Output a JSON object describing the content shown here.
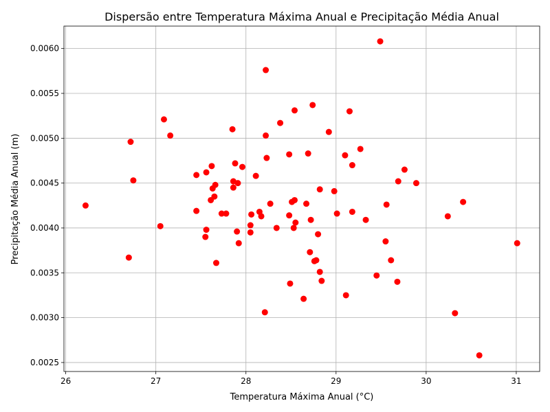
{
  "chart_data": {
    "type": "scatter",
    "title": "Dispersão entre Temperatura Máxima Anual e Precipitação Média Anual",
    "xlabel": "Temperatura Máxima Anual (°C)",
    "ylabel": "Precipitação Média Anual (m)",
    "xlim": [
      25.98,
      31.26
    ],
    "ylim": [
      0.0024,
      0.00625
    ],
    "xticks": [
      "26",
      "27",
      "28",
      "29",
      "30",
      "31"
    ],
    "xtick_values": [
      26,
      27,
      28,
      29,
      30,
      31
    ],
    "yticks": [
      "0.0025",
      "0.0030",
      "0.0035",
      "0.0040",
      "0.0045",
      "0.0050",
      "0.0055",
      "0.0060"
    ],
    "ytick_values": [
      0.0025,
      0.003,
      0.0035,
      0.004,
      0.0045,
      0.005,
      0.0055,
      0.006
    ],
    "grid": true,
    "marker_color": "#ff0000",
    "points": [
      [
        26.22,
        0.00425
      ],
      [
        26.7,
        0.00367
      ],
      [
        26.72,
        0.00496
      ],
      [
        26.75,
        0.00453
      ],
      [
        27.05,
        0.00402
      ],
      [
        27.09,
        0.00521
      ],
      [
        27.16,
        0.00503
      ],
      [
        27.45,
        0.00419
      ],
      [
        27.45,
        0.00459
      ],
      [
        27.55,
        0.0039
      ],
      [
        27.56,
        0.00398
      ],
      [
        27.56,
        0.00462
      ],
      [
        27.61,
        0.00431
      ],
      [
        27.62,
        0.00469
      ],
      [
        27.63,
        0.00444
      ],
      [
        27.65,
        0.00435
      ],
      [
        27.66,
        0.00448
      ],
      [
        27.67,
        0.00361
      ],
      [
        27.73,
        0.00416
      ],
      [
        27.78,
        0.00416
      ],
      [
        27.85,
        0.0051
      ],
      [
        27.86,
        0.00452
      ],
      [
        27.86,
        0.00445
      ],
      [
        27.88,
        0.00472
      ],
      [
        27.9,
        0.00396
      ],
      [
        27.91,
        0.0045
      ],
      [
        27.92,
        0.00383
      ],
      [
        27.96,
        0.00468
      ],
      [
        28.05,
        0.00403
      ],
      [
        28.05,
        0.00395
      ],
      [
        28.06,
        0.00415
      ],
      [
        28.11,
        0.00458
      ],
      [
        28.15,
        0.00418
      ],
      [
        28.17,
        0.00413
      ],
      [
        28.21,
        0.00306
      ],
      [
        28.22,
        0.00576
      ],
      [
        28.22,
        0.00503
      ],
      [
        28.23,
        0.00478
      ],
      [
        28.27,
        0.00427
      ],
      [
        28.34,
        0.004
      ],
      [
        28.38,
        0.00517
      ],
      [
        28.48,
        0.00482
      ],
      [
        28.48,
        0.00414
      ],
      [
        28.49,
        0.00338
      ],
      [
        28.51,
        0.00429
      ],
      [
        28.53,
        0.004
      ],
      [
        28.54,
        0.00531
      ],
      [
        28.54,
        0.00431
      ],
      [
        28.55,
        0.00406
      ],
      [
        28.64,
        0.00321
      ],
      [
        28.67,
        0.00427
      ],
      [
        28.69,
        0.00483
      ],
      [
        28.71,
        0.00373
      ],
      [
        28.72,
        0.00409
      ],
      [
        28.74,
        0.00537
      ],
      [
        28.76,
        0.00363
      ],
      [
        28.78,
        0.00364
      ],
      [
        28.8,
        0.00393
      ],
      [
        28.82,
        0.00443
      ],
      [
        28.82,
        0.00351
      ],
      [
        28.84,
        0.00341
      ],
      [
        28.92,
        0.00507
      ],
      [
        28.98,
        0.00441
      ],
      [
        29.01,
        0.00416
      ],
      [
        29.1,
        0.00481
      ],
      [
        29.11,
        0.00325
      ],
      [
        29.15,
        0.0053
      ],
      [
        29.18,
        0.0047
      ],
      [
        29.18,
        0.00418
      ],
      [
        29.27,
        0.00488
      ],
      [
        29.33,
        0.00409
      ],
      [
        29.45,
        0.00347
      ],
      [
        29.49,
        0.00608
      ],
      [
        29.55,
        0.00385
      ],
      [
        29.56,
        0.00426
      ],
      [
        29.61,
        0.00364
      ],
      [
        29.68,
        0.0034
      ],
      [
        29.69,
        0.00452
      ],
      [
        29.76,
        0.00465
      ],
      [
        29.89,
        0.0045
      ],
      [
        30.24,
        0.00413
      ],
      [
        30.32,
        0.00305
      ],
      [
        30.41,
        0.00429
      ],
      [
        30.59,
        0.00258
      ],
      [
        31.01,
        0.00383
      ]
    ]
  }
}
